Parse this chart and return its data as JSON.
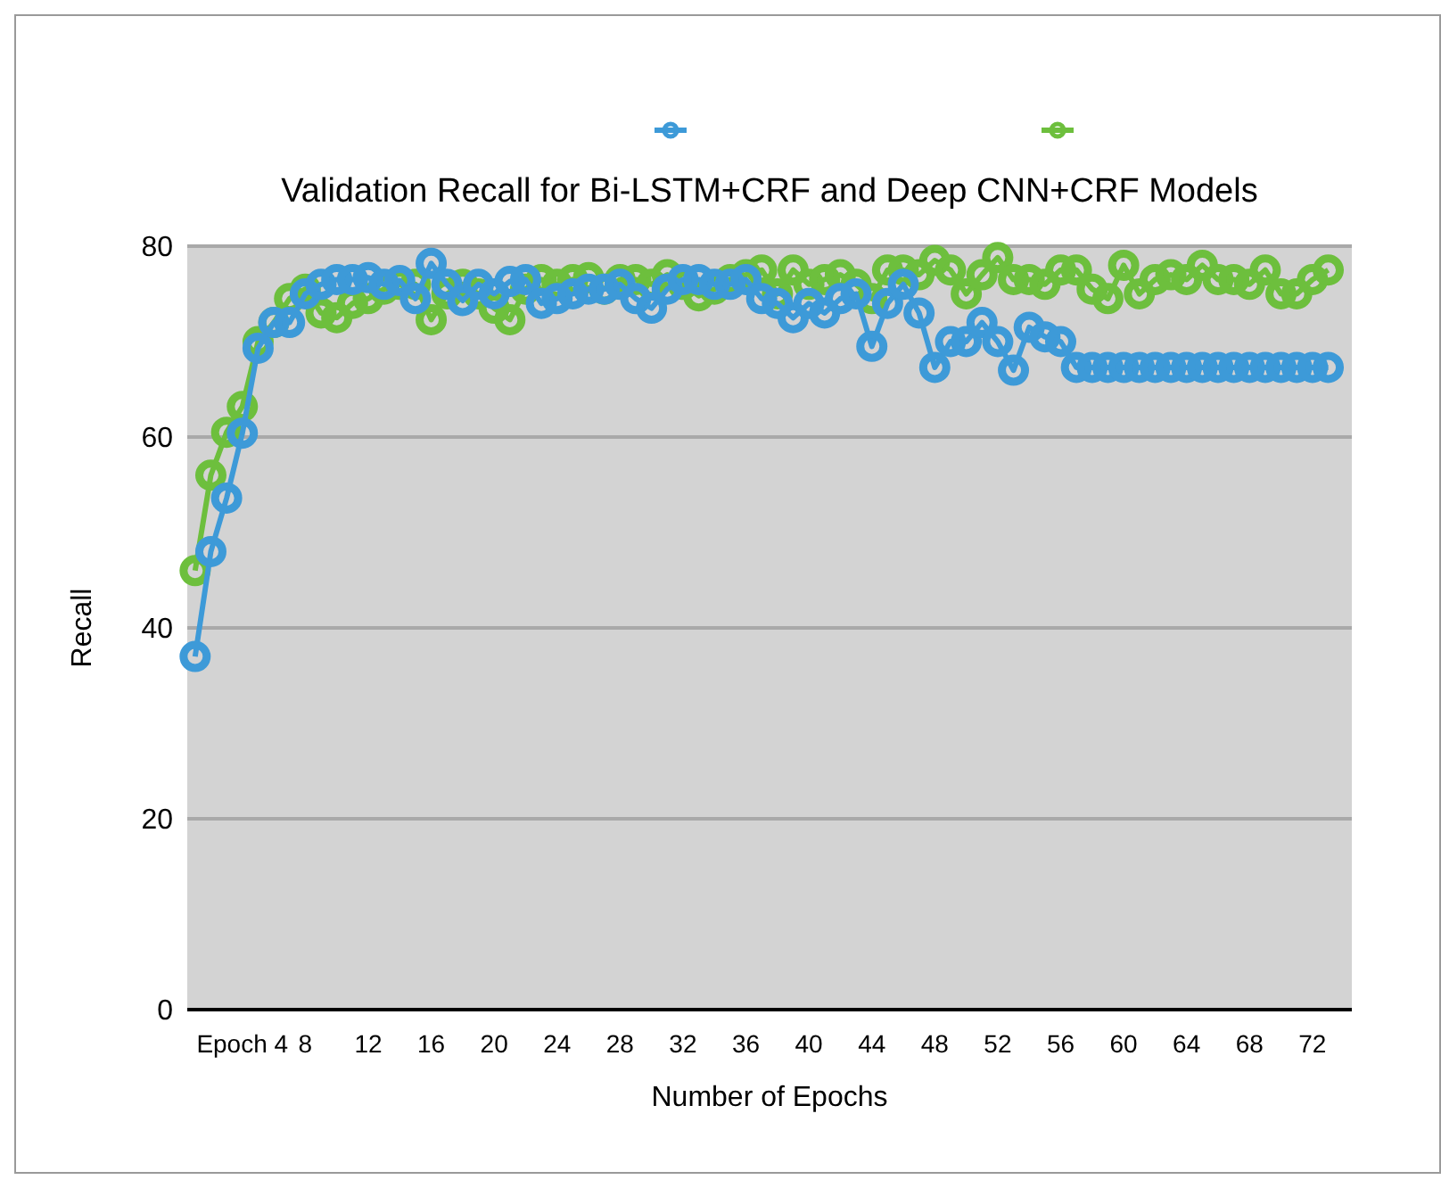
{
  "chart_data": {
    "type": "line",
    "title": "Validation Recall for Bi-LSTM+CRF and Deep CNN+CRF Models",
    "xlabel": "Number of Epochs",
    "ylabel": "Recall",
    "categories": [
      null,
      null,
      null,
      "Epoch 4",
      null,
      null,
      null,
      "8",
      null,
      null,
      null,
      "12",
      null,
      null,
      null,
      "16",
      null,
      null,
      null,
      "20",
      null,
      null,
      null,
      "24",
      null,
      null,
      null,
      "28",
      null,
      null,
      null,
      "32",
      null,
      null,
      null,
      "36",
      null,
      null,
      null,
      "40",
      null,
      null,
      null,
      "44",
      null,
      null,
      null,
      "48",
      null,
      null,
      null,
      "52",
      null,
      null,
      null,
      "56",
      null,
      null,
      null,
      "60",
      null,
      null,
      null,
      "64",
      null,
      null,
      null,
      "68",
      null,
      null,
      null,
      "72",
      null,
      null
    ],
    "series": [
      {
        "color": "#3d9ad8",
        "values": [
          37,
          48,
          53.6,
          60.4,
          69.3,
          72,
          72,
          75,
          76,
          76.5,
          76.5,
          76.7,
          76,
          76.4,
          74.5,
          78.2,
          76,
          74.3,
          76,
          75,
          76.3,
          76.5,
          74,
          74.5,
          75,
          75.5,
          75.5,
          76,
          74.5,
          73.5,
          75.5,
          76.5,
          76.5,
          76,
          76,
          76.5,
          74.5,
          74,
          72.5,
          74,
          73,
          74.5,
          75,
          69.5,
          74,
          76,
          73,
          67.3,
          70,
          70,
          72,
          70,
          67,
          71.5,
          70.5,
          70,
          67.3,
          67.3,
          67.3,
          67.3,
          67.3,
          67.3,
          67.3,
          67.3,
          67.3,
          67.3,
          67.3,
          67.3,
          67.3,
          67.3,
          67.3,
          67.3,
          67.3,
          null
        ]
      },
      {
        "color": "#6dbf3d",
        "values": [
          46,
          56,
          60.5,
          63.2,
          70,
          72,
          74.5,
          75.5,
          73,
          72.5,
          74,
          74.5,
          75.5,
          76,
          76,
          72.3,
          75,
          76,
          75,
          73.5,
          72.3,
          75.5,
          76.5,
          76,
          76.5,
          76.7,
          75.5,
          76.5,
          76.5,
          76,
          77,
          76,
          74.8,
          75.5,
          76.5,
          77,
          77.5,
          75,
          77.5,
          76,
          76.5,
          77,
          76,
          74.5,
          77.5,
          77.5,
          77,
          78.5,
          77.5,
          75,
          77,
          78.8,
          76.5,
          76.5,
          76,
          77.5,
          77.5,
          75.5,
          74.5,
          78,
          75,
          76.5,
          77,
          76.5,
          78,
          76.5,
          76.5,
          76,
          77.5,
          75,
          75,
          76.5,
          77.5,
          null
        ]
      }
    ],
    "ylim": [
      0,
      80
    ],
    "yticks": [
      0,
      20,
      40,
      60,
      80
    ],
    "grid": "y",
    "marker": "circle",
    "line_style": "solid"
  }
}
